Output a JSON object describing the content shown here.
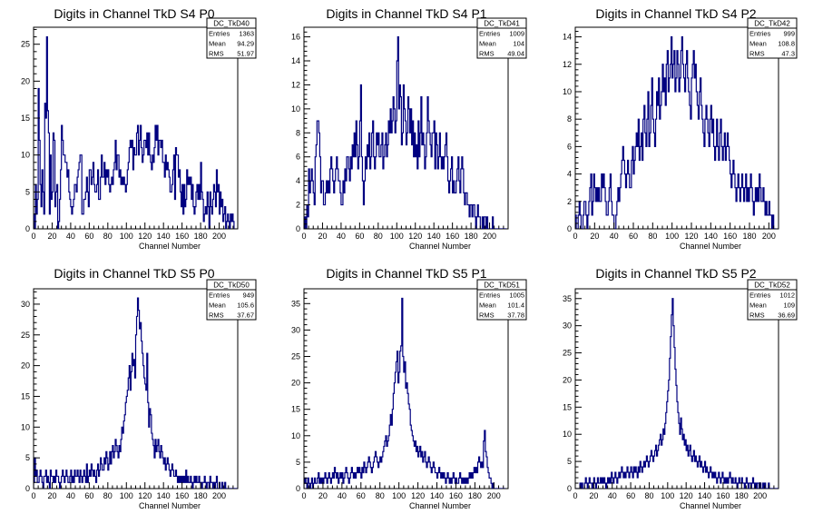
{
  "canvas": {
    "background": "#ffffff",
    "line_color": "#000080"
  },
  "chart_data": [
    {
      "type": "bar",
      "title": "Digits in Channel TkD S4 P0",
      "xlabel": "Channel Number",
      "ylabel": "",
      "xlim": [
        0,
        220
      ],
      "ylim": [
        0,
        27.3
      ],
      "xticks": [
        0,
        20,
        40,
        60,
        80,
        100,
        120,
        140,
        160,
        180,
        200
      ],
      "yticks": [
        0,
        5,
        10,
        15,
        20,
        25
      ],
      "stats": {
        "name": "DC_TkD40",
        "entries": "1363",
        "mean": "94.29",
        "rms": "51.97"
      },
      "bin_width": 1,
      "values": [
        2,
        0,
        6,
        2,
        4,
        19,
        12,
        6,
        3,
        8,
        5,
        2,
        17,
        15,
        26,
        16,
        13,
        2,
        10,
        4,
        5,
        13,
        12,
        3,
        5,
        6,
        0,
        1,
        4,
        8,
        14,
        12,
        10,
        10,
        9,
        9,
        7,
        8,
        5,
        4,
        3,
        2,
        3,
        4,
        6,
        6,
        5,
        7,
        8,
        9,
        10,
        10,
        2,
        2,
        4,
        4,
        5,
        7,
        5,
        3,
        8,
        8,
        6,
        7,
        9,
        6,
        5,
        5,
        6,
        8,
        4,
        4,
        7,
        10,
        7,
        7,
        9,
        6,
        8,
        7,
        8,
        6,
        5,
        6,
        7,
        6,
        8,
        9,
        12,
        8,
        10,
        10,
        7,
        8,
        6,
        7,
        6,
        7,
        6,
        5,
        6,
        8,
        9,
        11,
        12,
        11,
        12,
        8,
        11,
        10,
        10,
        13,
        14,
        10,
        12,
        14,
        11,
        9,
        10,
        12,
        12,
        11,
        13,
        10,
        13,
        10,
        9,
        8,
        10,
        9,
        11,
        14,
        12,
        14,
        10,
        12,
        12,
        11,
        12,
        9,
        9,
        7,
        10,
        8,
        9,
        8,
        7,
        5,
        5,
        6,
        8,
        10,
        4,
        11,
        10,
        10,
        7,
        8,
        5,
        3,
        6,
        2,
        6,
        3,
        4,
        8,
        6,
        7,
        6,
        7,
        4,
        6,
        3,
        2,
        3,
        5,
        6,
        4,
        6,
        4,
        9,
        5,
        4,
        1,
        2,
        3,
        2,
        5,
        3,
        0,
        5,
        3,
        2,
        4,
        6,
        5,
        3,
        8,
        5,
        6,
        2,
        5,
        3,
        4,
        1,
        2,
        3,
        0,
        1,
        2,
        1,
        0,
        2,
        1,
        2,
        1
      ]
    },
    {
      "type": "bar",
      "title": "Digits in Channel TkD S4 P1",
      "xlabel": "Channel Number",
      "ylabel": "",
      "xlim": [
        0,
        220
      ],
      "ylim": [
        0,
        16.8
      ],
      "xticks": [
        0,
        20,
        40,
        60,
        80,
        100,
        120,
        140,
        160,
        180,
        200
      ],
      "yticks": [
        0,
        2,
        4,
        6,
        8,
        10,
        12,
        14,
        16
      ],
      "stats": {
        "name": "DC_TkD41",
        "entries": "1009",
        "mean": "104",
        "rms": "49.04"
      },
      "bin_width": 1,
      "values": [
        0,
        1,
        0,
        2,
        1,
        5,
        3,
        4,
        5,
        4,
        3,
        2,
        6,
        7,
        9,
        9,
        8,
        6,
        3,
        4,
        4,
        2,
        2,
        3,
        4,
        3,
        4,
        3,
        5,
        6,
        5,
        4,
        3,
        4,
        5,
        6,
        5,
        4,
        4,
        3,
        2,
        2,
        4,
        3,
        5,
        4,
        6,
        6,
        5,
        4,
        6,
        5,
        7,
        6,
        8,
        6,
        9,
        7,
        5,
        6,
        9,
        12,
        6,
        4,
        2,
        4,
        6,
        5,
        7,
        6,
        8,
        5,
        6,
        8,
        9,
        6,
        5,
        6,
        8,
        7,
        8,
        6,
        6,
        7,
        8,
        5,
        6,
        7,
        8,
        6,
        7,
        9,
        8,
        10,
        8,
        9,
        11,
        10,
        8,
        9,
        14,
        16,
        10,
        12,
        11,
        7,
        8,
        12,
        10,
        9,
        7,
        8,
        11,
        10,
        8,
        10,
        7,
        9,
        6,
        8,
        6,
        7,
        5,
        9,
        6,
        8,
        11,
        7,
        8,
        7,
        5,
        6,
        8,
        11,
        9,
        8,
        7,
        6,
        8,
        8,
        9,
        5,
        8,
        7,
        5,
        6,
        8,
        6,
        5,
        6,
        5,
        6,
        7,
        8,
        6,
        4,
        3,
        4,
        5,
        6,
        3,
        4,
        3,
        3,
        4,
        5,
        6,
        4,
        3,
        5,
        6,
        5,
        3,
        2,
        3,
        3,
        2,
        2,
        1,
        2,
        2,
        1,
        2,
        2,
        1,
        0,
        1,
        2,
        1,
        1,
        0,
        0,
        1,
        0,
        1,
        1,
        0,
        1,
        0,
        0,
        0,
        0,
        0,
        1,
        0,
        0,
        0,
        0,
        0,
        0,
        0,
        0,
        0,
        0,
        0,
        0,
        0,
        0
      ]
    },
    {
      "type": "bar",
      "title": "Digits in Channel TkD S4 P2",
      "xlabel": "Channel Number",
      "ylabel": "",
      "xlim": [
        0,
        210
      ],
      "ylim": [
        0,
        14.7
      ],
      "xticks": [
        0,
        20,
        40,
        60,
        80,
        100,
        120,
        140,
        160,
        180,
        200
      ],
      "yticks": [
        0,
        2,
        4,
        6,
        8,
        10,
        12,
        14
      ],
      "stats": {
        "name": "DC_TkD42",
        "entries": "999",
        "mean": "108.8",
        "rms": "47.3"
      },
      "bin_width": 1,
      "values": [
        1,
        0,
        0,
        1,
        2,
        1,
        0,
        0,
        1,
        2,
        2,
        1,
        0,
        1,
        2,
        3,
        4,
        1,
        2,
        4,
        3,
        2,
        3,
        2,
        3,
        2,
        2,
        4,
        3,
        4,
        3,
        2,
        1,
        1,
        2,
        3,
        4,
        2,
        1,
        1,
        0,
        0,
        1,
        2,
        3,
        2,
        3,
        4,
        5,
        6,
        5,
        4,
        3,
        4,
        5,
        4,
        3,
        3,
        5,
        6,
        4,
        5,
        6,
        7,
        6,
        8,
        5,
        6,
        7,
        5,
        8,
        9,
        7,
        6,
        8,
        10,
        6,
        7,
        9,
        11,
        8,
        7,
        6,
        8,
        10,
        9,
        11,
        8,
        9,
        10,
        12,
        10,
        11,
        9,
        12,
        13,
        10,
        11,
        12,
        14,
        11,
        12,
        13,
        10,
        11,
        13,
        12,
        10,
        11,
        13,
        14,
        12,
        11,
        10,
        12,
        13,
        11,
        10,
        9,
        8,
        11,
        12,
        13,
        11,
        12,
        10,
        9,
        8,
        10,
        11,
        9,
        8,
        7,
        6,
        8,
        9,
        8,
        7,
        6,
        8,
        9,
        7,
        8,
        6,
        5,
        6,
        8,
        6,
        5,
        7,
        8,
        6,
        5,
        6,
        7,
        5,
        6,
        7,
        6,
        5,
        4,
        3,
        4,
        5,
        4,
        3,
        2,
        3,
        4,
        3,
        2,
        3,
        4,
        3,
        2,
        3,
        4,
        2,
        3,
        2,
        3,
        4,
        3,
        2,
        1,
        2,
        3,
        2,
        3,
        2,
        4,
        3,
        2,
        2,
        3,
        2,
        1,
        2,
        1,
        1,
        2,
        1,
        1,
        0,
        1,
        0,
        0
      ]
    },
    {
      "type": "bar",
      "title": "Digits in Channel TkD S5 P0",
      "xlabel": "Channel Number",
      "ylabel": "",
      "xlim": [
        0,
        220
      ],
      "ylim": [
        0,
        32.5
      ],
      "xticks": [
        0,
        20,
        40,
        60,
        80,
        100,
        120,
        140,
        160,
        180,
        200
      ],
      "yticks": [
        0,
        5,
        10,
        15,
        20,
        25,
        30
      ],
      "stats": {
        "name": "DC_TkD50",
        "entries": "949",
        "mean": "105.6",
        "rms": "37.67"
      },
      "bin_width": 1,
      "values": [
        1,
        5,
        2,
        3,
        1,
        1,
        2,
        3,
        2,
        1,
        0,
        2,
        2,
        3,
        1,
        2,
        1,
        0,
        3,
        2,
        2,
        1,
        2,
        1,
        3,
        2,
        2,
        1,
        0,
        1,
        2,
        3,
        2,
        1,
        2,
        3,
        2,
        1,
        1,
        2,
        3,
        1,
        2,
        1,
        3,
        2,
        2,
        3,
        2,
        1,
        3,
        2,
        1,
        2,
        3,
        2,
        1,
        4,
        1,
        2,
        3,
        2,
        4,
        3,
        2,
        3,
        2,
        1,
        3,
        4,
        2,
        3,
        5,
        4,
        3,
        3,
        5,
        4,
        6,
        5,
        3,
        4,
        6,
        4,
        6,
        7,
        5,
        6,
        8,
        7,
        6,
        5,
        7,
        6,
        8,
        10,
        9,
        11,
        12,
        14,
        15,
        16,
        18,
        20,
        16,
        19,
        22,
        20,
        21,
        18,
        25,
        28,
        31,
        29,
        26,
        27,
        24,
        22,
        20,
        18,
        17,
        16,
        22,
        14,
        10,
        13,
        12,
        9,
        8,
        7,
        5,
        8,
        6,
        7,
        8,
        6,
        5,
        7,
        6,
        5,
        4,
        5,
        3,
        4,
        5,
        4,
        3,
        2,
        3,
        4,
        3,
        2,
        2,
        3,
        2,
        1,
        2,
        1,
        2,
        1,
        2,
        1,
        2,
        1,
        3,
        1,
        2,
        1,
        1,
        2,
        1,
        0,
        1,
        2,
        1,
        2,
        1,
        1,
        2,
        1,
        1,
        0,
        1,
        1,
        2,
        1,
        0,
        1,
        1,
        0,
        2,
        1,
        1,
        0,
        1,
        0,
        1,
        2,
        0,
        0,
        1,
        0,
        0,
        1,
        0,
        0,
        1,
        0,
        0,
        0,
        0,
        0,
        0,
        0,
        0,
        0,
        0,
        0,
        0,
        0,
        0,
        0
      ]
    },
    {
      "type": "bar",
      "title": "Digits in Channel TkD S5 P1",
      "xlabel": "Channel Number",
      "ylabel": "",
      "xlim": [
        0,
        215
      ],
      "ylim": [
        0,
        37.8
      ],
      "xticks": [
        0,
        20,
        40,
        60,
        80,
        100,
        120,
        140,
        160,
        180,
        200
      ],
      "yticks": [
        0,
        5,
        10,
        15,
        20,
        25,
        30,
        35
      ],
      "stats": {
        "name": "DC_TkD51",
        "entries": "1005",
        "mean": "101.4",
        "rms": "37.78"
      },
      "bin_width": 1,
      "values": [
        1,
        2,
        1,
        0,
        2,
        1,
        0,
        1,
        2,
        0,
        1,
        2,
        1,
        1,
        2,
        3,
        1,
        2,
        1,
        2,
        1,
        2,
        3,
        2,
        1,
        2,
        3,
        2,
        1,
        2,
        3,
        2,
        4,
        3,
        2,
        3,
        1,
        2,
        3,
        2,
        3,
        1,
        2,
        3,
        4,
        3,
        2,
        1,
        2,
        3,
        4,
        3,
        2,
        3,
        2,
        3,
        4,
        3,
        4,
        3,
        2,
        4,
        3,
        5,
        4,
        3,
        4,
        5,
        6,
        5,
        4,
        3,
        4,
        5,
        6,
        7,
        6,
        5,
        4,
        5,
        6,
        5,
        6,
        7,
        8,
        9,
        10,
        8,
        9,
        10,
        12,
        14,
        12,
        15,
        18,
        20,
        22,
        24,
        26,
        20,
        22,
        26,
        27,
        36,
        25,
        22,
        24,
        19,
        20,
        18,
        16,
        15,
        12,
        11,
        10,
        9,
        8,
        9,
        7,
        8,
        6,
        7,
        8,
        6,
        7,
        5,
        6,
        7,
        5,
        4,
        5,
        6,
        5,
        4,
        3,
        4,
        5,
        4,
        3,
        3,
        2,
        3,
        4,
        3,
        2,
        3,
        2,
        3,
        2,
        1,
        2,
        3,
        2,
        1,
        2,
        1,
        2,
        3,
        2,
        1,
        2,
        1,
        1,
        2,
        3,
        2,
        1,
        2,
        1,
        2,
        1,
        2,
        1,
        2,
        3,
        2,
        3,
        2,
        3,
        4,
        3,
        4,
        3,
        5,
        6,
        5,
        4,
        5,
        4,
        9,
        11,
        7,
        6,
        4,
        3,
        2,
        2,
        1,
        0,
        1,
        0,
        0,
        0,
        0,
        0,
        0,
        0,
        0,
        0,
        0,
        0,
        0
      ]
    },
    {
      "type": "bar",
      "title": "Digits in Channel TkD S5 P2",
      "xlabel": "Channel Number",
      "ylabel": "",
      "xlim": [
        0,
        220
      ],
      "ylim": [
        0,
        36.8
      ],
      "xticks": [
        0,
        20,
        40,
        60,
        80,
        100,
        120,
        140,
        160,
        180,
        200
      ],
      "yticks": [
        0,
        5,
        10,
        15,
        20,
        25,
        30,
        35
      ],
      "stats": {
        "name": "DC_TkD52",
        "entries": "1012",
        "mean": "109",
        "rms": "36.69"
      },
      "bin_width": 1,
      "values": [
        0,
        0,
        0,
        0,
        0,
        1,
        0,
        1,
        0,
        0,
        1,
        2,
        1,
        0,
        1,
        2,
        1,
        1,
        0,
        1,
        2,
        1,
        0,
        1,
        2,
        1,
        1,
        2,
        1,
        2,
        1,
        2,
        1,
        0,
        1,
        2,
        1,
        2,
        1,
        3,
        2,
        1,
        2,
        3,
        2,
        1,
        2,
        3,
        2,
        3,
        4,
        3,
        2,
        3,
        2,
        3,
        4,
        3,
        2,
        3,
        4,
        3,
        2,
        4,
        3,
        4,
        3,
        2,
        4,
        3,
        5,
        4,
        3,
        4,
        5,
        4,
        5,
        6,
        5,
        4,
        5,
        6,
        7,
        6,
        5,
        6,
        7,
        8,
        6,
        7,
        8,
        9,
        10,
        8,
        9,
        11,
        10,
        12,
        14,
        16,
        18,
        20,
        24,
        28,
        32,
        35,
        30,
        26,
        22,
        19,
        16,
        14,
        12,
        10,
        13,
        11,
        9,
        10,
        8,
        9,
        7,
        8,
        6,
        7,
        8,
        6,
        5,
        6,
        7,
        5,
        6,
        5,
        4,
        5,
        6,
        4,
        5,
        4,
        3,
        4,
        5,
        3,
        4,
        3,
        2,
        3,
        4,
        3,
        2,
        3,
        2,
        3,
        2,
        1,
        2,
        3,
        2,
        1,
        2,
        3,
        2,
        1,
        2,
        1,
        2,
        1,
        2,
        3,
        2,
        1,
        2,
        1,
        1,
        2,
        1,
        0,
        1,
        2,
        1,
        1,
        2,
        1,
        1,
        0,
        1,
        2,
        1,
        0,
        1,
        1,
        0,
        1,
        2,
        1,
        0,
        1,
        0,
        1,
        1,
        0,
        1,
        0,
        0,
        1,
        0,
        1,
        0,
        0,
        0,
        1,
        0,
        0,
        0,
        0,
        0,
        0,
        0,
        0,
        0,
        0
      ]
    }
  ]
}
